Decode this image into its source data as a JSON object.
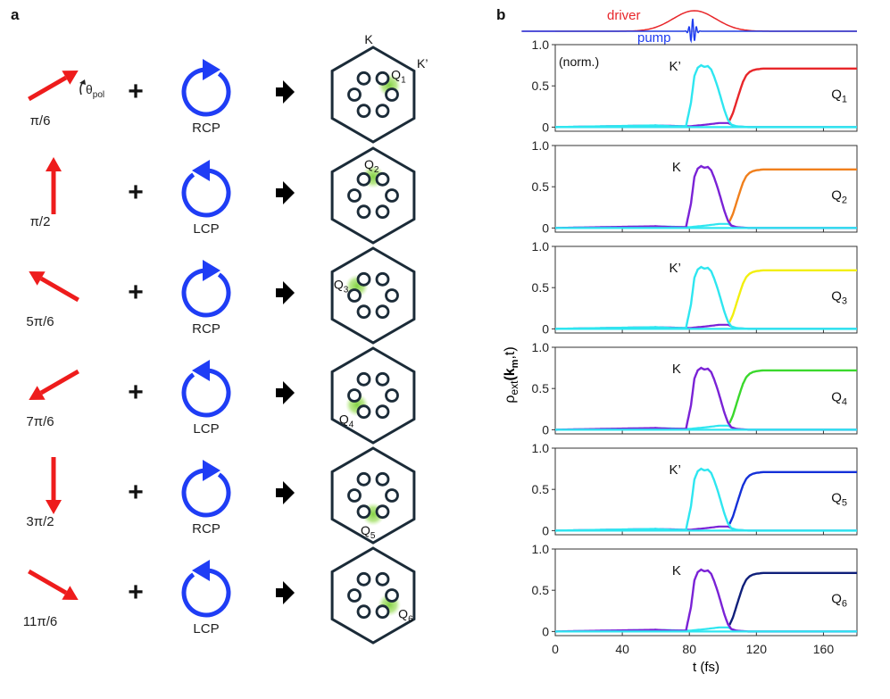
{
  "panel_a": {
    "letter": "a",
    "theta_label": "θ",
    "theta_sub": "pol",
    "plus": "+",
    "k_label": "K",
    "kprime_label": "K’",
    "rows": [
      {
        "angle_label": "π/6",
        "angle_deg": 30,
        "pol": "RCP",
        "q_main": "Q",
        "q_sub": "1",
        "q_index": 1
      },
      {
        "angle_label": "π/2",
        "angle_deg": 90,
        "pol": "LCP",
        "q_main": "Q",
        "q_sub": "2",
        "q_index": 2
      },
      {
        "angle_label": "5π/6",
        "angle_deg": 150,
        "pol": "RCP",
        "q_main": "Q",
        "q_sub": "3",
        "q_index": 3
      },
      {
        "angle_label": "7π/6",
        "angle_deg": 210,
        "pol": "LCP",
        "q_main": "Q",
        "q_sub": "4",
        "q_index": 4
      },
      {
        "angle_label": "3π/2",
        "angle_deg": 270,
        "pol": "RCP",
        "q_main": "Q",
        "q_sub": "5",
        "q_index": 5
      },
      {
        "angle_label": "11π/6",
        "angle_deg": 330,
        "pol": "LCP",
        "q_main": "Q",
        "q_sub": "6",
        "q_index": 6
      }
    ]
  },
  "panel_b": {
    "letter": "b",
    "driver_label": "driver",
    "pump_label": "pump",
    "norm_label": "(norm.)"
  },
  "colors": {
    "arrow": "#ee1c1c",
    "circ": "#1f3df5",
    "hex": "#1b2b38",
    "glow": "#7ccf3a",
    "cyan": "#2ee6f0",
    "purple": "#7a22d6",
    "driver": "#e8262a",
    "pump": "#1e3cf0",
    "q_colors": [
      "#e8262a",
      "#f07f1c",
      "#f2ef0e",
      "#3ad82c",
      "#1430d8",
      "#0f1f7a"
    ]
  },
  "chart_data": {
    "type": "line",
    "title": "",
    "xlabel": "t (fs)",
    "ylabel_main": "ρ",
    "ylabel_sub": "ext",
    "ylabel_args": "(k",
    "ylabel_args_sub": "m",
    "ylabel_args_end": ",t)",
    "xlim": [
      0,
      180
    ],
    "ylim": [
      -0.05,
      1.0
    ],
    "x_ticks": [
      0,
      40,
      80,
      120,
      160
    ],
    "x_tick_labels": [
      "0",
      "40",
      "80",
      "120",
      "160"
    ],
    "y_ticks": [
      0,
      0.5,
      1.0
    ],
    "y_tick_labels": [
      "0",
      "0.5",
      "1.0"
    ],
    "panels": [
      {
        "valley_label": "K’",
        "peak_series": "cyan",
        "q_main": "Q",
        "q_sub": "1",
        "final_value": 0.71
      },
      {
        "valley_label": "K",
        "peak_series": "purple",
        "q_main": "Q",
        "q_sub": "2",
        "final_value": 0.71
      },
      {
        "valley_label": "K’",
        "peak_series": "cyan",
        "q_main": "Q",
        "q_sub": "3",
        "final_value": 0.71
      },
      {
        "valley_label": "K",
        "peak_series": "purple",
        "q_main": "Q",
        "q_sub": "4",
        "final_value": 0.72
      },
      {
        "valley_label": "K’",
        "peak_series": "cyan",
        "q_main": "Q",
        "q_sub": "5",
        "final_value": 0.71
      },
      {
        "valley_label": "K",
        "peak_series": "purple",
        "q_main": "Q",
        "q_sub": "6",
        "final_value": 0.71
      }
    ],
    "series": [
      {
        "name": "peak valley",
        "x": [
          0,
          60,
          70,
          78,
          81,
          83,
          85,
          87,
          89,
          91,
          93,
          95,
          97,
          99,
          101,
          103,
          105,
          108,
          115,
          180
        ],
        "values": [
          0,
          0.02,
          0.01,
          0.01,
          0.3,
          0.62,
          0.72,
          0.75,
          0.73,
          0.74,
          0.7,
          0.6,
          0.48,
          0.34,
          0.2,
          0.09,
          0.03,
          0.01,
          0,
          0
        ]
      },
      {
        "name": "other valley",
        "x": [
          0,
          60,
          80,
          90,
          98,
          103,
          107,
          115,
          180
        ],
        "values": [
          0,
          0.02,
          0.01,
          0.03,
          0.05,
          0.05,
          0.01,
          0,
          0
        ]
      },
      {
        "name": "Q valley",
        "x": [
          104,
          106,
          108,
          110,
          112,
          114,
          116,
          118,
          120,
          124,
          130,
          180
        ],
        "values": [
          0.08,
          0.17,
          0.3,
          0.43,
          0.55,
          0.63,
          0.67,
          0.69,
          0.7,
          0.71,
          0.71,
          0.71
        ]
      }
    ],
    "pulse_timing": {
      "pump_center_fs": 82,
      "driver_center_fs": 83,
      "driver_width_fs": 20
    }
  }
}
